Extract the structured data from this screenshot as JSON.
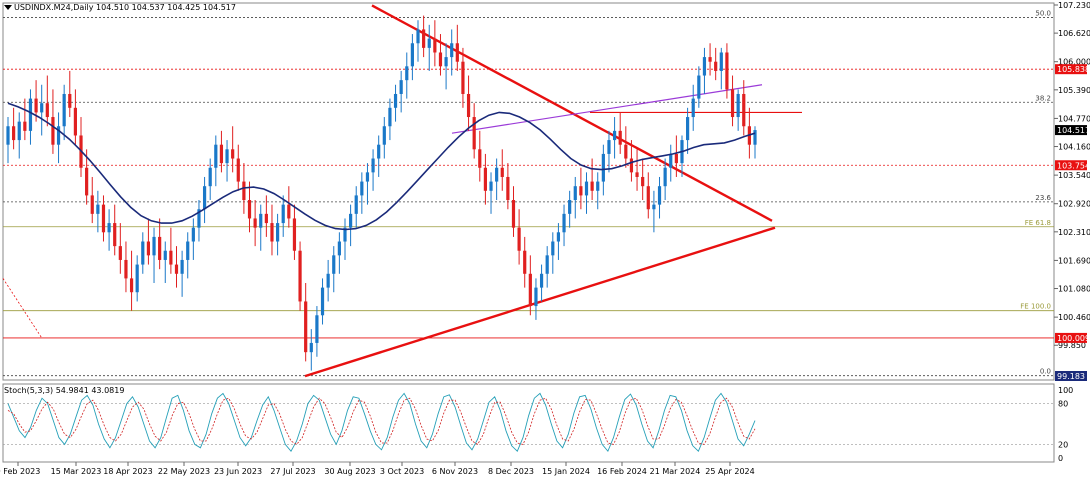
{
  "header": {
    "symbol_line": "USDINDX.M24,Daily  104.510 104.537 104.425 104.517"
  },
  "stoch": {
    "label": "Stoch(5,3,3) 54.9841 43.0819",
    "levels": [
      "100",
      "80",
      "20",
      "0"
    ]
  },
  "colors": {
    "up_candle": "#1a78c8",
    "down_candle": "#e02020",
    "ma": "#1a2a7a",
    "trendline": "#e81010",
    "purple_line": "#9b3bd8",
    "hline_red": "#e81010",
    "fib_gray": "#444444",
    "fe_olive": "#9a9a3a",
    "stoch_main": "#26a0b8",
    "stoch_signal": "#d02020"
  },
  "chart_data": {
    "type": "candlestick",
    "ylim": [
      99.183,
      107.23
    ],
    "price_ticks": [
      "107.230",
      "106.620",
      "106.000",
      "105.390",
      "104.770",
      "104.160",
      "103.540",
      "102.920",
      "102.310",
      "101.690",
      "101.080",
      "100.460",
      "99.850"
    ],
    "date_ticks": [
      "9 Feb 2023",
      "15 Mar 2023",
      "18 Apr 2023",
      "22 May 2023",
      "23 Jun 2023",
      "27 Jul 2023",
      "30 Aug 2023",
      "3 Oct 2023",
      "6 Nov 2023",
      "8 Dec 2023",
      "15 Jan 2024",
      "16 Feb 2024",
      "21 Mar 2024",
      "25 Apr 2024"
    ],
    "price_labels": [
      {
        "text": "105.838",
        "value": 105.838,
        "color": "#e81010"
      },
      {
        "text": "104.517",
        "value": 104.517,
        "color": "#000000"
      },
      {
        "text": "103.754",
        "value": 103.754,
        "color": "#e81010"
      },
      {
        "text": "100.009",
        "value": 100.009,
        "color": "#e81010"
      },
      {
        "text": "99.183",
        "value": 99.183,
        "color": "#1a2a7a"
      }
    ],
    "levels": [
      {
        "label": "50.0",
        "value": 106.96,
        "color": "#444444",
        "dash": true
      },
      {
        "label": "",
        "value": 105.838,
        "color": "#e81010",
        "dash": true
      },
      {
        "label": "38.2",
        "value": 105.12,
        "color": "#444444",
        "dash": true
      },
      {
        "label": "",
        "value": 103.754,
        "color": "#e81010",
        "dash": true
      },
      {
        "label": "23.6",
        "value": 102.96,
        "color": "#444444",
        "dash": true
      },
      {
        "label": "FE 61.8",
        "value": 102.42,
        "color": "#9a9a3a",
        "dash": false
      },
      {
        "label": "FE 100.0",
        "value": 100.6,
        "color": "#9a9a3a",
        "dash": false
      },
      {
        "label": "",
        "value": 100.009,
        "color": "#e81010",
        "dash": false
      },
      {
        "label": "0.0",
        "value": 99.19,
        "color": "#444444",
        "dash": true
      }
    ],
    "candles": [
      [
        104.2,
        104.8,
        103.8,
        104.6
      ],
      [
        104.6,
        105.0,
        104.1,
        104.3
      ],
      [
        104.3,
        104.9,
        103.9,
        104.7
      ],
      [
        104.7,
        105.2,
        104.3,
        104.5
      ],
      [
        104.5,
        105.4,
        104.2,
        105.2
      ],
      [
        105.2,
        105.6,
        104.7,
        104.9
      ],
      [
        104.9,
        105.5,
        104.4,
        105.1
      ],
      [
        105.1,
        105.7,
        104.6,
        104.8
      ],
      [
        104.8,
        105.4,
        104.0,
        104.2
      ],
      [
        104.2,
        104.9,
        103.8,
        104.6
      ],
      [
        104.6,
        105.5,
        104.3,
        105.3
      ],
      [
        105.3,
        105.8,
        104.8,
        105.0
      ],
      [
        105.0,
        105.4,
        104.2,
        104.4
      ],
      [
        104.4,
        104.8,
        103.5,
        103.7
      ],
      [
        103.7,
        104.1,
        102.9,
        103.1
      ],
      [
        103.1,
        103.5,
        102.5,
        102.7
      ],
      [
        102.7,
        103.2,
        102.3,
        102.9
      ],
      [
        102.9,
        103.1,
        102.1,
        102.3
      ],
      [
        102.3,
        102.8,
        101.9,
        102.5
      ],
      [
        102.5,
        102.9,
        101.8,
        102.0
      ],
      [
        102.0,
        102.5,
        101.4,
        101.7
      ],
      [
        101.7,
        102.1,
        101.0,
        101.3
      ],
      [
        101.3,
        101.9,
        100.6,
        101.0
      ],
      [
        101.0,
        101.8,
        100.8,
        101.6
      ],
      [
        101.6,
        102.3,
        101.4,
        102.1
      ],
      [
        102.1,
        102.6,
        101.6,
        101.8
      ],
      [
        101.8,
        102.4,
        101.2,
        102.2
      ],
      [
        102.2,
        102.6,
        101.5,
        101.7
      ],
      [
        101.7,
        102.1,
        101.2,
        101.9
      ],
      [
        101.9,
        102.4,
        101.4,
        101.6
      ],
      [
        101.6,
        102.0,
        101.1,
        101.4
      ],
      [
        101.4,
        101.9,
        100.9,
        101.7
      ],
      [
        101.7,
        102.3,
        101.3,
        102.1
      ],
      [
        102.1,
        102.6,
        101.7,
        102.4
      ],
      [
        102.4,
        103.0,
        102.1,
        102.8
      ],
      [
        102.8,
        103.5,
        102.5,
        103.3
      ],
      [
        103.3,
        103.9,
        103.0,
        103.7
      ],
      [
        103.7,
        104.4,
        103.3,
        104.2
      ],
      [
        104.2,
        104.5,
        103.6,
        103.8
      ],
      [
        103.8,
        104.3,
        103.4,
        104.1
      ],
      [
        104.1,
        104.6,
        103.6,
        103.9
      ],
      [
        103.9,
        104.2,
        103.2,
        103.4
      ],
      [
        103.4,
        103.8,
        102.7,
        103.0
      ],
      [
        103.0,
        103.4,
        102.3,
        102.6
      ],
      [
        102.6,
        103.0,
        102.0,
        102.4
      ],
      [
        102.4,
        102.9,
        101.9,
        102.7
      ],
      [
        102.7,
        103.1,
        102.2,
        102.5
      ],
      [
        102.5,
        102.9,
        101.8,
        102.1
      ],
      [
        102.1,
        102.7,
        101.8,
        102.5
      ],
      [
        102.5,
        103.1,
        102.2,
        102.9
      ],
      [
        102.9,
        103.3,
        102.4,
        102.6
      ],
      [
        102.6,
        102.9,
        101.7,
        101.9
      ],
      [
        101.9,
        102.1,
        100.6,
        100.8
      ],
      [
        100.8,
        101.2,
        99.5,
        99.7
      ],
      [
        99.7,
        100.2,
        99.3,
        99.9
      ],
      [
        99.9,
        100.7,
        99.6,
        100.5
      ],
      [
        100.5,
        101.3,
        100.3,
        101.1
      ],
      [
        101.1,
        101.7,
        100.8,
        101.4
      ],
      [
        101.4,
        102.0,
        101.0,
        101.8
      ],
      [
        101.8,
        102.3,
        101.4,
        102.1
      ],
      [
        102.1,
        102.6,
        101.7,
        102.4
      ],
      [
        102.4,
        102.9,
        102.0,
        102.7
      ],
      [
        102.7,
        103.3,
        102.4,
        103.1
      ],
      [
        103.1,
        103.6,
        102.7,
        103.4
      ],
      [
        103.4,
        103.8,
        102.9,
        103.6
      ],
      [
        103.6,
        104.1,
        103.2,
        103.9
      ],
      [
        103.9,
        104.4,
        103.5,
        104.2
      ],
      [
        104.2,
        104.8,
        103.9,
        104.6
      ],
      [
        104.6,
        105.2,
        104.3,
        105.0
      ],
      [
        105.0,
        105.5,
        104.7,
        105.3
      ],
      [
        105.3,
        105.8,
        104.9,
        105.6
      ],
      [
        105.6,
        106.2,
        105.2,
        105.9
      ],
      [
        105.9,
        106.6,
        105.6,
        106.4
      ],
      [
        106.4,
        106.9,
        106.0,
        106.7
      ],
      [
        106.7,
        107.0,
        106.1,
        106.3
      ],
      [
        106.3,
        106.8,
        105.8,
        106.5
      ],
      [
        106.5,
        106.9,
        105.9,
        106.2
      ],
      [
        106.2,
        106.6,
        105.7,
        105.9
      ],
      [
        105.9,
        106.4,
        105.4,
        106.1
      ],
      [
        106.1,
        106.7,
        105.7,
        106.4
      ],
      [
        106.4,
        106.8,
        105.8,
        106.0
      ],
      [
        106.0,
        106.3,
        105.0,
        105.3
      ],
      [
        105.3,
        105.7,
        104.5,
        104.8
      ],
      [
        104.8,
        105.1,
        103.9,
        104.1
      ],
      [
        104.1,
        104.5,
        103.4,
        103.7
      ],
      [
        103.7,
        104.0,
        102.9,
        103.2
      ],
      [
        103.2,
        103.6,
        102.7,
        103.4
      ],
      [
        103.4,
        103.9,
        103.0,
        103.7
      ],
      [
        103.7,
        104.1,
        103.2,
        103.5
      ],
      [
        103.5,
        103.8,
        102.8,
        103.0
      ],
      [
        103.0,
        103.3,
        102.2,
        102.4
      ],
      [
        102.4,
        102.8,
        101.6,
        101.9
      ],
      [
        101.9,
        102.2,
        101.1,
        101.4
      ],
      [
        101.4,
        101.8,
        100.5,
        100.7
      ],
      [
        100.7,
        101.3,
        100.4,
        101.1
      ],
      [
        101.1,
        101.6,
        100.8,
        101.4
      ],
      [
        101.4,
        102.0,
        101.1,
        101.8
      ],
      [
        101.8,
        102.3,
        101.4,
        102.1
      ],
      [
        102.1,
        102.5,
        101.7,
        102.3
      ],
      [
        102.3,
        102.9,
        102.0,
        102.7
      ],
      [
        102.7,
        103.2,
        102.4,
        103.0
      ],
      [
        103.0,
        103.5,
        102.6,
        103.3
      ],
      [
        103.3,
        103.7,
        102.8,
        103.1
      ],
      [
        103.1,
        103.6,
        102.7,
        103.4
      ],
      [
        103.4,
        103.9,
        103.0,
        103.2
      ],
      [
        103.2,
        103.6,
        102.8,
        103.4
      ],
      [
        103.4,
        104.2,
        103.1,
        104.0
      ],
      [
        104.0,
        104.5,
        103.6,
        104.3
      ],
      [
        104.3,
        104.8,
        103.9,
        104.5
      ],
      [
        104.5,
        104.9,
        104.0,
        104.2
      ],
      [
        104.2,
        104.6,
        103.7,
        103.9
      ],
      [
        103.9,
        104.3,
        103.4,
        103.6
      ],
      [
        103.6,
        104.1,
        103.2,
        103.5
      ],
      [
        103.5,
        103.9,
        103.0,
        103.3
      ],
      [
        103.3,
        103.6,
        102.6,
        102.8
      ],
      [
        102.8,
        103.2,
        102.3,
        102.9
      ],
      [
        102.9,
        103.5,
        102.6,
        103.3
      ],
      [
        103.3,
        103.9,
        103.0,
        103.7
      ],
      [
        103.7,
        104.2,
        103.4,
        104.0
      ],
      [
        104.0,
        104.4,
        103.5,
        103.8
      ],
      [
        103.8,
        104.4,
        103.5,
        104.3
      ],
      [
        104.3,
        105.0,
        104.0,
        104.8
      ],
      [
        104.8,
        105.5,
        104.5,
        105.2
      ],
      [
        105.2,
        105.9,
        105.0,
        105.7
      ],
      [
        105.7,
        106.3,
        105.3,
        106.1
      ],
      [
        106.1,
        106.4,
        105.7,
        106.0
      ],
      [
        106.0,
        106.3,
        105.6,
        105.8
      ],
      [
        105.8,
        106.3,
        105.4,
        106.2
      ],
      [
        106.2,
        106.4,
        105.2,
        105.4
      ],
      [
        105.4,
        105.7,
        104.6,
        104.8
      ],
      [
        104.8,
        105.4,
        104.5,
        105.3
      ],
      [
        105.3,
        105.6,
        104.4,
        104.6
      ],
      [
        104.6,
        105.0,
        103.9,
        104.2
      ],
      [
        104.2,
        104.6,
        103.9,
        104.517
      ]
    ],
    "ma": [
      105.1,
      105.02,
      104.92,
      104.8,
      104.66,
      104.5,
      104.32,
      104.1,
      103.86,
      103.6,
      103.33,
      103.07,
      102.84,
      102.66,
      102.55,
      102.5,
      102.5,
      102.55,
      102.65,
      102.78,
      102.92,
      103.06,
      103.18,
      103.26,
      103.28,
      103.24,
      103.14,
      103.0,
      102.85,
      102.7,
      102.56,
      102.45,
      102.38,
      102.36,
      102.38,
      102.45,
      102.57,
      102.74,
      102.95,
      103.18,
      103.42,
      103.66,
      103.9,
      104.14,
      104.36,
      104.56,
      104.72,
      104.84,
      104.9,
      104.88,
      104.8,
      104.68,
      104.52,
      104.32,
      104.1,
      103.9,
      103.76,
      103.68,
      103.66,
      103.68,
      103.74,
      103.82,
      103.88,
      103.92,
      103.96,
      104.0,
      104.06,
      104.14,
      104.2,
      104.22,
      104.24,
      104.3,
      104.38,
      104.45
    ],
    "stoch_main": [
      80,
      60,
      40,
      30,
      45,
      70,
      88,
      80,
      55,
      30,
      20,
      35,
      60,
      85,
      92,
      78,
      50,
      28,
      15,
      30,
      55,
      80,
      90,
      75,
      50,
      25,
      15,
      30,
      60,
      88,
      92,
      70,
      40,
      20,
      15,
      35,
      65,
      88,
      95,
      80,
      55,
      30,
      18,
      30,
      55,
      78,
      90,
      70,
      45,
      20,
      10,
      25,
      50,
      80,
      92,
      85,
      60,
      35,
      20,
      40,
      70,
      90,
      88,
      65,
      40,
      20,
      12,
      30,
      60,
      85,
      95,
      80,
      50,
      25,
      15,
      35,
      65,
      90,
      93,
      75,
      48,
      22,
      12,
      28,
      55,
      82,
      90,
      70,
      40,
      18,
      10,
      30,
      62,
      88,
      95,
      78,
      50,
      25,
      15,
      35,
      66,
      90,
      92,
      72,
      44,
      20,
      10,
      30,
      60,
      86,
      94,
      78,
      50,
      25,
      15,
      40,
      70,
      92,
      90,
      70,
      40,
      18,
      10,
      30,
      58,
      85,
      95,
      82,
      55,
      28,
      18,
      35,
      55
    ],
    "stoch_signal": [
      70,
      65,
      50,
      38,
      40,
      55,
      72,
      82,
      72,
      52,
      35,
      30,
      42,
      62,
      80,
      85,
      70,
      48,
      30,
      25,
      35,
      55,
      75,
      82,
      72,
      50,
      32,
      25,
      38,
      62,
      80,
      82,
      65,
      42,
      25,
      25,
      42,
      65,
      85,
      88,
      72,
      50,
      32,
      28,
      38,
      58,
      78,
      80,
      65,
      42,
      25,
      20,
      30,
      52,
      75,
      88,
      80,
      60,
      38,
      30,
      45,
      68,
      85,
      82,
      62,
      38,
      22,
      22,
      40,
      65,
      85,
      88,
      72,
      48,
      28,
      25,
      40,
      66,
      85,
      85,
      68,
      45,
      25,
      20,
      35,
      60,
      82,
      82,
      62,
      38,
      22,
      20,
      38,
      65,
      85,
      88,
      72,
      48,
      28,
      25,
      42,
      68,
      86,
      85,
      65,
      42,
      22,
      20,
      38,
      65,
      85,
      88,
      72,
      48,
      28,
      28,
      48,
      72,
      86,
      82,
      62,
      40,
      22,
      20,
      35,
      60,
      82,
      88,
      75,
      52,
      32,
      28,
      43
    ]
  }
}
